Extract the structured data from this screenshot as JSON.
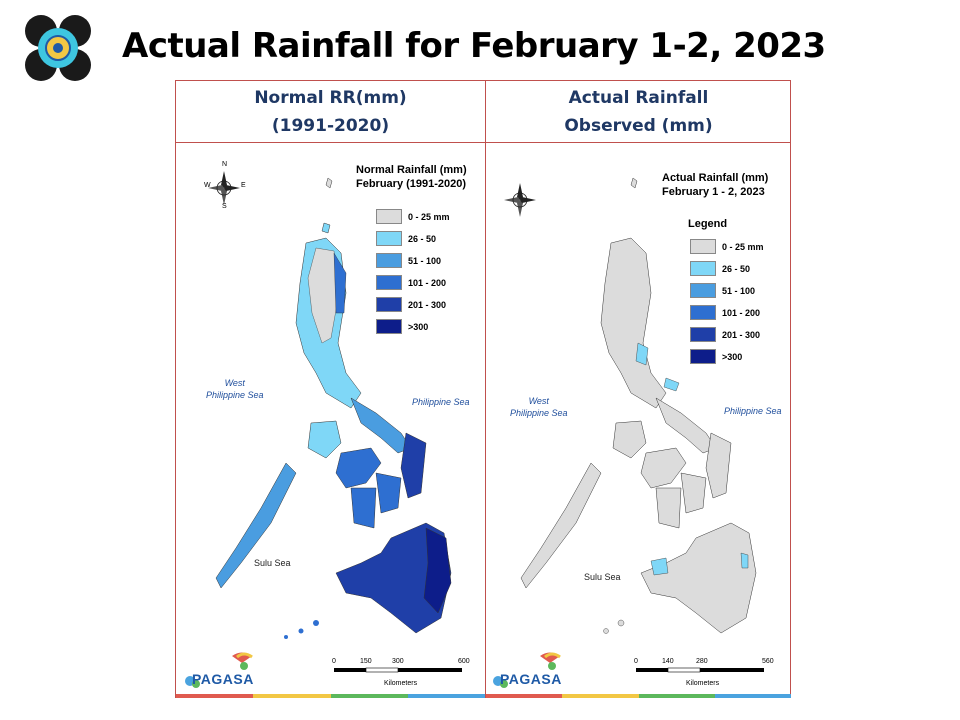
{
  "slide": {
    "title": "Actual Rainfall for February 1-2, 2023"
  },
  "left_panel": {
    "header_line1": "Normal RR(mm)",
    "header_line2": "(1991-2020)",
    "map_title_line1": "Normal Rainfall (mm)",
    "map_title_line2": "February (1991-2020)",
    "legend": [
      {
        "label": "0 - 25 mm",
        "color": "#dcdcdc"
      },
      {
        "label": "26 - 50",
        "color": "#7fd7f7"
      },
      {
        "label": "51 - 100",
        "color": "#4a9de0"
      },
      {
        "label": "101 - 200",
        "color": "#2e6fd1"
      },
      {
        "label": "201 - 300",
        "color": "#1f3fa8"
      },
      {
        "label": ">300",
        "color": "#0d1d8a"
      }
    ],
    "sea_west_line1": "West",
    "sea_west_line2": "Philippine Sea",
    "sea_east": "Philippine Sea",
    "sea_south": "Sulu Sea",
    "scale_ticks": [
      "0",
      "150",
      "300",
      "600"
    ],
    "scale_unit": "Kilometers"
  },
  "right_panel": {
    "header_line1": "Actual Rainfall",
    "header_line2": "Observed (mm)",
    "map_title_line1": "Actual Rainfall (mm)",
    "map_title_line2": "February 1 - 2, 2023",
    "legend_heading": "Legend",
    "legend": [
      {
        "label": "0 - 25 mm",
        "color": "#dcdcdc"
      },
      {
        "label": "26 - 50",
        "color": "#7fd7f7"
      },
      {
        "label": "51 - 100",
        "color": "#4a9de0"
      },
      {
        "label": "101 - 200",
        "color": "#2e6fd1"
      },
      {
        "label": "201 - 300",
        "color": "#1f3fa8"
      },
      {
        "label": ">300",
        "color": "#0d1d8a"
      }
    ],
    "sea_west_line1": "West",
    "sea_west_line2": "Philippine Sea",
    "sea_east": "Philippine Sea",
    "sea_south": "Sulu Sea",
    "scale_ticks": [
      "0",
      "140",
      "280",
      "560"
    ],
    "scale_unit": "Kilometers"
  },
  "compass": {
    "n": "N",
    "s": "S",
    "e": "E",
    "w": "W"
  },
  "branding": {
    "name": "PAGASA",
    "colors": {
      "red": "#e05a4f",
      "yellow": "#f2c744",
      "green": "#5cb85c",
      "blue": "#4aa3df"
    }
  }
}
